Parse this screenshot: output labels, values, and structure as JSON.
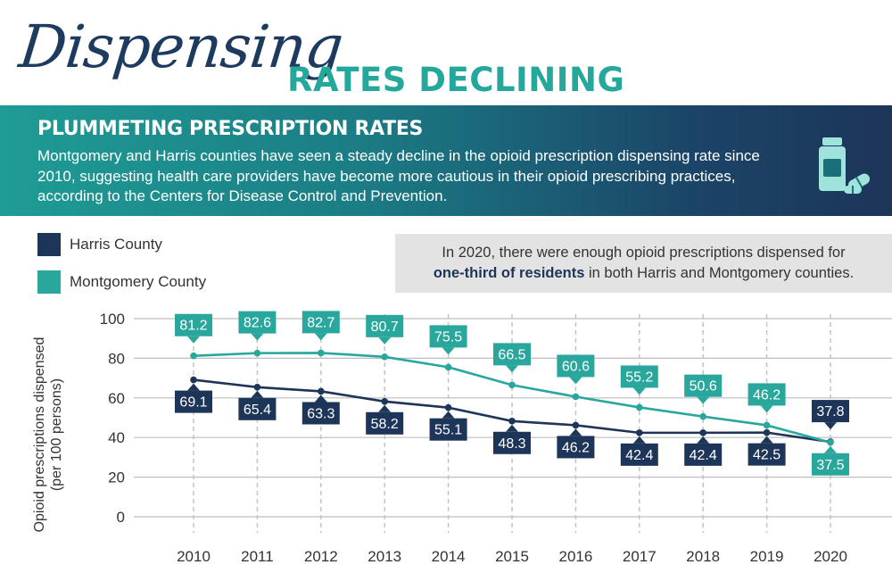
{
  "title": {
    "script": "Dispensing",
    "main": "RATES DECLINING"
  },
  "banner": {
    "heading": "PLUMMETING PRESCRIPTION RATES",
    "body": "Montgomery and Harris counties have seen a steady decline in the opioid prescription dispensing rate since 2010, suggesting health care providers have become more cautious in their opioid prescribing practices, according to the Centers for Disease Control and Prevention.",
    "icon": "pill-bottle-icon"
  },
  "callout": {
    "line1": "In 2020, there were enough opioid prescriptions dispensed for",
    "bold": "one-third of residents",
    "line2_rest": " in both Harris and Montgomery counties."
  },
  "colors": {
    "harris": "#1d3558",
    "montgomery": "#2aa79d",
    "grid": "#c8c8c8"
  },
  "chart_data": {
    "type": "line",
    "x": [
      "2010",
      "2011",
      "2012",
      "2013",
      "2014",
      "2015",
      "2016",
      "2017",
      "2018",
      "2019",
      "2020"
    ],
    "series": [
      {
        "name": "Harris County",
        "values": [
          69.1,
          65.4,
          63.3,
          58.2,
          55.1,
          48.3,
          46.2,
          42.4,
          42.4,
          42.5,
          37.8
        ]
      },
      {
        "name": "Montgomery County",
        "values": [
          81.2,
          82.6,
          82.7,
          80.7,
          75.5,
          66.5,
          60.6,
          55.2,
          50.6,
          46.2,
          37.5
        ]
      }
    ],
    "ylabel_line1": "Opioid prescriptions dispensed",
    "ylabel_line2": "(per 100 persons)",
    "ylim": [
      0,
      100
    ],
    "yticks": [
      "0",
      "20",
      "40",
      "60",
      "80",
      "100"
    ],
    "legend_position": "top-left",
    "grid": "vertical dashed"
  }
}
